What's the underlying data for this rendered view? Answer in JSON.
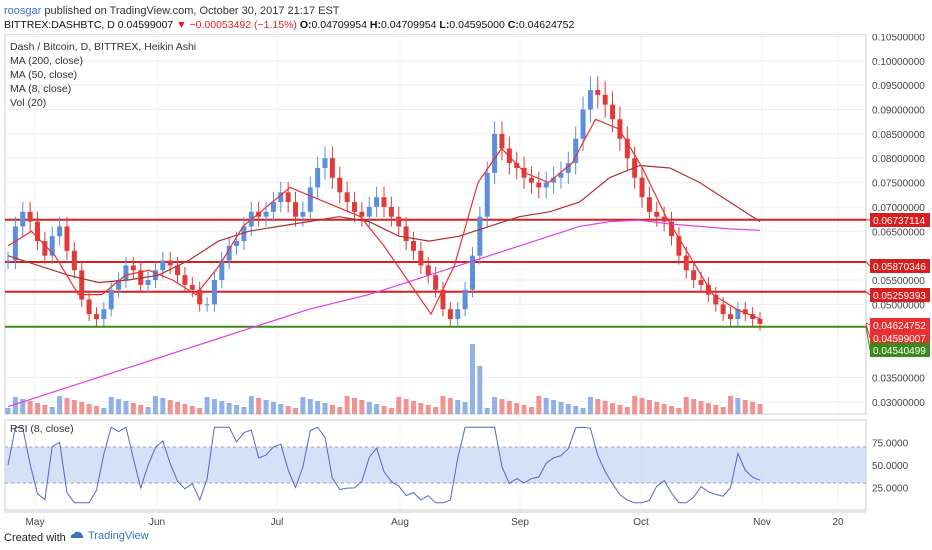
{
  "header": {
    "author": "roosgar",
    "published_text": " published on TradingView.com, October 30, 2017 21:17 EST",
    "symbol": "BITTREX:DASHBTC, D",
    "last": "0.04599007",
    "change": "▼ −0.00053492 (−1.15%)",
    "open_label": "O:",
    "open": "0.04709954",
    "high_label": "H:",
    "high": "0.04709954",
    "low_label": "L:",
    "low": "0.04595000",
    "close_label": "C:",
    "close": "0.04624752"
  },
  "legend": {
    "title": "Dash / Bitcoin, D, BITTREX, Heikin Ashi",
    "ma200": "MA (200, close)",
    "ma50": "MA (50, close)",
    "ma8": "MA (8, close)",
    "vol": "Vol (20)"
  },
  "rsi_label": "RSI (8, close)",
  "footer": {
    "created_with": "Created with",
    "brand": "TradingView"
  },
  "colors": {
    "up": "#5b8fd9",
    "down": "#e03a3a",
    "ma200": "#e040e0",
    "ma50": "#b03030",
    "ma8": "#e83030",
    "hline_red": "#d81e1e",
    "hline_green": "#3a8a1e",
    "rsi_line": "#5566cc",
    "rsi_band": "#ccd8f5",
    "volume_up": "#7fa3e0",
    "volume_down": "#f08080"
  },
  "chart_data": {
    "type": "candlestick",
    "y_ticks": [
      "0.10500000",
      "0.10000000",
      "0.09500000",
      "0.09000000",
      "0.08500000",
      "0.08000000",
      "0.07500000",
      "0.07000000",
      "0.06500000",
      "0.05500000",
      "0.05000000",
      "0.03500000",
      "0.03000000"
    ],
    "ylim": [
      0.0275,
      0.1055
    ],
    "x_ticks": [
      "May",
      "Jun",
      "Jul",
      "Aug",
      "Sep",
      "Oct",
      "Nov",
      "20"
    ],
    "price_labels": [
      {
        "value": 0.06737114,
        "text": "0.06737114",
        "color": "#d81e1e"
      },
      {
        "value": 0.05870346,
        "text": "0.05870346",
        "color": "#d81e1e"
      },
      {
        "value": 0.05259393,
        "text": "0.05259393",
        "color": "#d81e1e"
      },
      {
        "value": 0.04624752,
        "text": "0.04624752",
        "color": "#e83030"
      },
      {
        "value": 0.04599007,
        "text": "0.04599007",
        "color": "#e83030"
      },
      {
        "value": 0.04540499,
        "text": "0.04540499",
        "color": "#3a8a1e"
      }
    ],
    "horizontal_lines": [
      {
        "value": 0.06737114,
        "color": "#d81e1e"
      },
      {
        "value": 0.05870346,
        "color": "#d81e1e"
      },
      {
        "value": 0.05259393,
        "color": "#d81e1e"
      },
      {
        "value": 0.04540499,
        "color": "#3a8a1e"
      }
    ],
    "series": [
      {
        "name": "Price",
        "closes": [
          0.059,
          0.066,
          0.069,
          0.067,
          0.063,
          0.06,
          0.064,
          0.066,
          0.061,
          0.057,
          0.051,
          0.048,
          0.047,
          0.049,
          0.053,
          0.055,
          0.058,
          0.057,
          0.054,
          0.055,
          0.057,
          0.059,
          0.058,
          0.056,
          0.054,
          0.053,
          0.05,
          0.05,
          0.055,
          0.059,
          0.062,
          0.063,
          0.066,
          0.069,
          0.068,
          0.069,
          0.071,
          0.073,
          0.071,
          0.068,
          0.069,
          0.074,
          0.078,
          0.08,
          0.076,
          0.073,
          0.071,
          0.069,
          0.068,
          0.07,
          0.072,
          0.07,
          0.068,
          0.066,
          0.063,
          0.061,
          0.058,
          0.056,
          0.053,
          0.049,
          0.047,
          0.049,
          0.053,
          0.06,
          0.068,
          0.077,
          0.085,
          0.082,
          0.079,
          0.078,
          0.076,
          0.075,
          0.074,
          0.075,
          0.076,
          0.077,
          0.079,
          0.084,
          0.09,
          0.094,
          0.093,
          0.091,
          0.088,
          0.084,
          0.08,
          0.076,
          0.072,
          0.069,
          0.068,
          0.067,
          0.064,
          0.06,
          0.057,
          0.055,
          0.054,
          0.052,
          0.05,
          0.048,
          0.047,
          0.049,
          0.048,
          0.047,
          0.046
        ]
      },
      {
        "name": "MA (200, close)",
        "values": [
          0.029,
          0.031,
          0.033,
          0.035,
          0.037,
          0.039,
          0.041,
          0.043,
          0.045,
          0.047,
          0.049,
          0.0505,
          0.052,
          0.054,
          0.056,
          0.058,
          0.06,
          0.062,
          0.064,
          0.066,
          0.067,
          0.0673,
          0.0665,
          0.066,
          0.0655,
          0.0652
        ]
      },
      {
        "name": "MA (50, close)",
        "values": [
          0.06,
          0.058,
          0.056,
          0.0545,
          0.055,
          0.056,
          0.059,
          0.063,
          0.065,
          0.066,
          0.067,
          0.068,
          0.067,
          0.064,
          0.063,
          0.064,
          0.066,
          0.068,
          0.069,
          0.071,
          0.076,
          0.0785,
          0.078,
          0.075,
          0.071,
          0.067
        ]
      },
      {
        "name": "MA (8, close)",
        "values": [
          0.062,
          0.065,
          0.06,
          0.052,
          0.052,
          0.056,
          0.057,
          0.055,
          0.052,
          0.058,
          0.066,
          0.07,
          0.074,
          0.072,
          0.07,
          0.068,
          0.062,
          0.055,
          0.048,
          0.058,
          0.075,
          0.082,
          0.077,
          0.075,
          0.079,
          0.088,
          0.086,
          0.078,
          0.068,
          0.06,
          0.052,
          0.049,
          0.047
        ]
      }
    ],
    "rsi": {
      "y_ticks": [
        "75.0000",
        "50.0000",
        "25.0000"
      ],
      "band": [
        30,
        70
      ]
    }
  }
}
